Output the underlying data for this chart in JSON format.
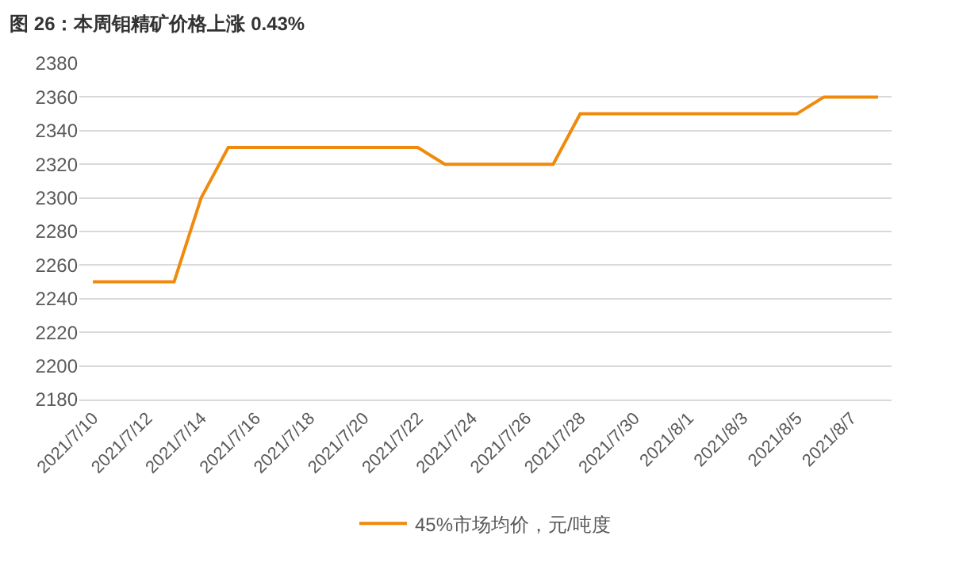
{
  "chart_data": {
    "type": "line",
    "title": "图 26：本周钼精矿价格上涨 0.43%",
    "x": [
      "2021-07-10",
      "2021-07-11",
      "2021-07-12",
      "2021-07-13",
      "2021-07-14",
      "2021-07-15",
      "2021-07-16",
      "2021-07-17",
      "2021-07-18",
      "2021-07-19",
      "2021-07-20",
      "2021-07-21",
      "2021-07-22",
      "2021-07-23",
      "2021-07-24",
      "2021-07-25",
      "2021-07-26",
      "2021-07-27",
      "2021-07-28",
      "2021-07-29",
      "2021-07-30",
      "2021-07-31",
      "2021-08-01",
      "2021-08-02",
      "2021-08-03",
      "2021-08-04",
      "2021-08-05",
      "2021-08-06",
      "2021-08-07",
      "2021-08-08"
    ],
    "series": [
      {
        "name": "45%市场均价，元/吨度",
        "color": "#f08a0c",
        "values": [
          2250,
          2250,
          2250,
          2250,
          2300,
          2330,
          2330,
          2330,
          2330,
          2330,
          2330,
          2330,
          2330,
          2320,
          2320,
          2320,
          2320,
          2320,
          2350,
          2350,
          2350,
          2350,
          2350,
          2350,
          2350,
          2350,
          2350,
          2360,
          2360,
          2360
        ]
      }
    ],
    "xlim": [
      "2021-07-09T12:00",
      "2021-08-08T12:00"
    ],
    "xticks": [
      {
        "value": "2021-07-10",
        "label": "2021/7/10"
      },
      {
        "value": "2021-07-12",
        "label": "2021/7/12"
      },
      {
        "value": "2021-07-14",
        "label": "2021/7/14"
      },
      {
        "value": "2021-07-16",
        "label": "2021/7/16"
      },
      {
        "value": "2021-07-18",
        "label": "2021/7/18"
      },
      {
        "value": "2021-07-20",
        "label": "2021/7/20"
      },
      {
        "value": "2021-07-22",
        "label": "2021/7/22"
      },
      {
        "value": "2021-07-24",
        "label": "2021/7/24"
      },
      {
        "value": "2021-07-26",
        "label": "2021/7/26"
      },
      {
        "value": "2021-07-28",
        "label": "2021/7/28"
      },
      {
        "value": "2021-07-30",
        "label": "2021/7/30"
      },
      {
        "value": "2021-08-01",
        "label": "2021/8/1"
      },
      {
        "value": "2021-08-03",
        "label": "2021/8/3"
      },
      {
        "value": "2021-08-05",
        "label": "2021/8/5"
      },
      {
        "value": "2021-08-07",
        "label": "2021/8/7"
      }
    ],
    "ylim": [
      2180,
      2380
    ],
    "yticks": [
      2180,
      2200,
      2220,
      2240,
      2260,
      2280,
      2300,
      2320,
      2340,
      2360,
      2380
    ],
    "grid": "y",
    "legend": "bottom",
    "line_style": "solid"
  }
}
